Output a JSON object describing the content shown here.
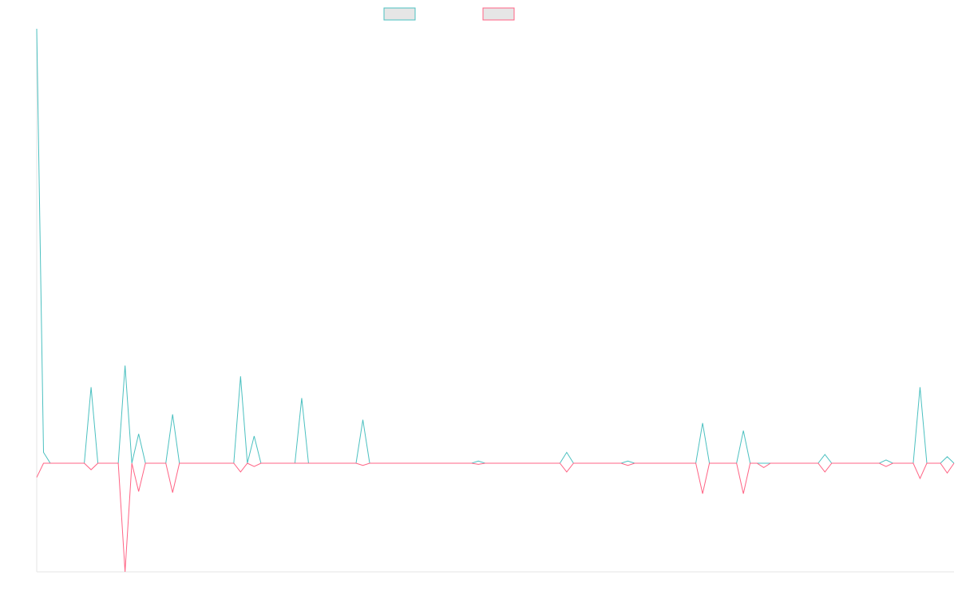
{
  "colors": {
    "series_a": "#4bc0c0",
    "series_b": "#ff6384",
    "swatch_fill": "#e6e6e6",
    "axis": "#e6e6e6"
  },
  "legend": [
    {
      "label": "",
      "color": "#4bc0c0"
    },
    {
      "label": "",
      "color": "#ff6384"
    }
  ],
  "chart_data": {
    "type": "line",
    "title": "",
    "xlabel": "",
    "ylabel": "",
    "grid": false,
    "legend_placement": "top-center",
    "xlim": [
      0,
      99
    ],
    "ylim": [
      -1,
      4
    ],
    "series": [
      {
        "values": [
          4,
          0.1,
          0,
          0,
          0,
          0,
          0,
          0,
          0.7,
          0,
          0,
          0,
          0,
          0.9,
          0,
          0.27,
          0,
          0,
          0,
          0,
          0.45,
          0,
          0,
          0,
          0,
          0,
          0,
          0,
          0,
          0,
          0.8,
          0,
          0.25,
          0,
          0,
          0,
          0,
          0,
          0,
          0.6,
          0,
          0,
          0,
          0,
          0,
          0,
          0,
          0,
          0.4,
          0,
          0,
          0,
          0,
          0,
          0,
          0,
          0,
          0,
          0,
          0,
          0,
          0,
          0,
          0,
          0,
          0.02,
          0,
          0,
          0,
          0,
          0,
          0,
          0,
          0,
          0,
          0,
          0,
          0,
          0.1,
          0,
          0,
          0,
          0,
          0,
          0,
          0,
          0,
          0.02,
          0,
          0,
          0,
          0,
          0,
          0,
          0,
          0,
          0,
          0,
          0.37,
          0,
          0,
          0,
          0,
          0,
          0.3,
          0,
          0,
          0,
          0,
          0,
          0,
          0,
          0,
          0,
          0,
          0,
          0.08,
          0,
          0,
          0,
          0,
          0,
          0,
          0,
          0,
          0.03,
          0,
          0,
          0,
          0,
          0.7,
          0,
          0,
          0,
          0.06,
          0
        ]
      },
      {
        "values": [
          -0.13,
          0,
          0,
          0,
          0,
          0,
          0,
          0,
          -0.06,
          0,
          0,
          0,
          0,
          -1,
          0,
          -0.26,
          0,
          0,
          0,
          0,
          -0.27,
          0,
          0,
          0,
          0,
          0,
          0,
          0,
          0,
          0,
          -0.08,
          0,
          -0.03,
          0,
          0,
          0,
          0,
          0,
          0,
          0,
          0,
          0,
          0,
          0,
          0,
          0,
          0,
          0,
          -0.02,
          0,
          0,
          0,
          0,
          0,
          0,
          0,
          0,
          0,
          0,
          0,
          0,
          0,
          0,
          0,
          0,
          -0.01,
          0,
          0,
          0,
          0,
          0,
          0,
          0,
          0,
          0,
          0,
          0,
          0,
          -0.08,
          0,
          0,
          0,
          0,
          0,
          0,
          0,
          0,
          -0.02,
          0,
          0,
          0,
          0,
          0,
          0,
          0,
          0,
          0,
          0,
          -0.28,
          0,
          0,
          0,
          0,
          0,
          -0.28,
          0,
          0,
          -0.04,
          0,
          0,
          0,
          0,
          0,
          0,
          0,
          0,
          -0.08,
          0,
          0,
          0,
          0,
          0,
          0,
          0,
          0,
          -0.03,
          0,
          0,
          0,
          0,
          -0.14,
          0,
          0,
          0,
          -0.09,
          0
        ]
      }
    ]
  }
}
